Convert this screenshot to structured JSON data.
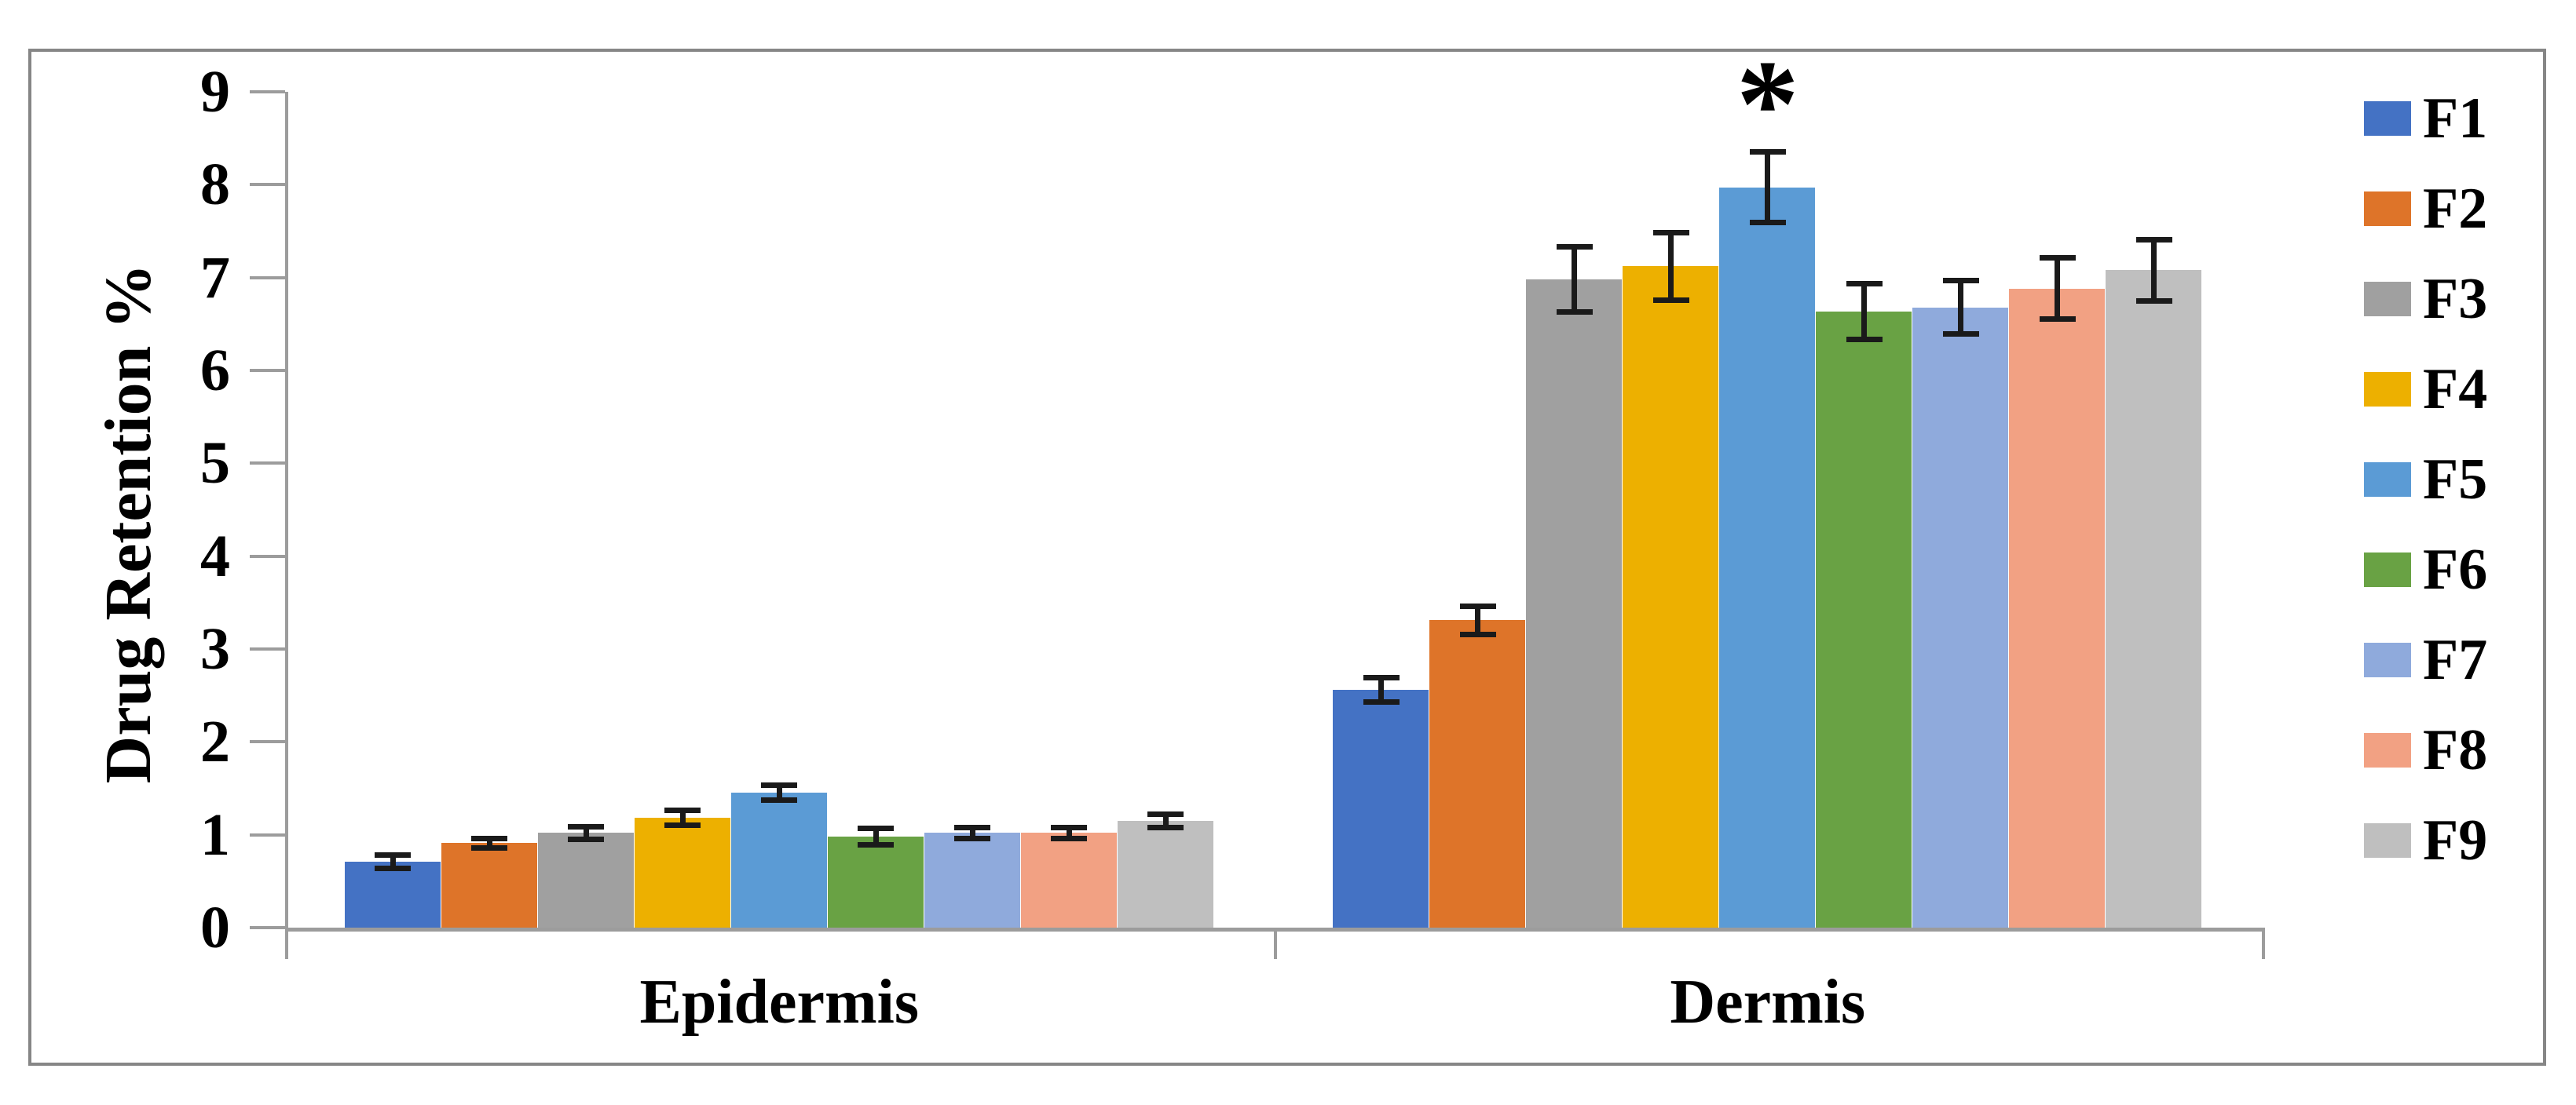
{
  "figure": {
    "background": "#ffffff",
    "frame_border_color": "#868686"
  },
  "chart_data": {
    "type": "bar",
    "title": "",
    "ylabel": "Drug Retention %",
    "xlabel": "",
    "categories": [
      "Epidermis",
      "Dermis"
    ],
    "y_axis": {
      "min": 0,
      "max": 9,
      "step": 1
    },
    "ylim": [
      0,
      9
    ],
    "grid": false,
    "legend_position": "right",
    "axis_color": "#9c9c9c",
    "error_bar_color": "#1a1a1a",
    "series": [
      {
        "name": "F1",
        "color": "#4472C4",
        "values": [
          0.71,
          2.56
        ],
        "errors": [
          0.07,
          0.13
        ]
      },
      {
        "name": "F2",
        "color": "#DE7429",
        "values": [
          0.91,
          3.31
        ],
        "errors": [
          0.05,
          0.15
        ]
      },
      {
        "name": "F3",
        "color": "#A0A0A0",
        "values": [
          1.02,
          6.98
        ],
        "errors": [
          0.07,
          0.35
        ]
      },
      {
        "name": "F4",
        "color": "#EDB000",
        "values": [
          1.18,
          7.12
        ],
        "errors": [
          0.08,
          0.36
        ]
      },
      {
        "name": "F5",
        "color": "#5B9BD5",
        "values": [
          1.45,
          7.97
        ],
        "errors": [
          0.08,
          0.38
        ]
      },
      {
        "name": "F6",
        "color": "#69A244",
        "values": [
          0.98,
          6.63
        ],
        "errors": [
          0.09,
          0.3
        ]
      },
      {
        "name": "F7",
        "color": "#8FAADC",
        "values": [
          1.02,
          6.68
        ],
        "errors": [
          0.06,
          0.29
        ]
      },
      {
        "name": "F8",
        "color": "#F2A183",
        "values": [
          1.02,
          6.88
        ],
        "errors": [
          0.06,
          0.33
        ]
      },
      {
        "name": "F9",
        "color": "#BFBFBF",
        "values": [
          1.15,
          7.08
        ],
        "errors": [
          0.07,
          0.33
        ]
      }
    ],
    "annotations": [
      {
        "text": "*",
        "category": "Dermis",
        "series": "F5"
      }
    ]
  }
}
